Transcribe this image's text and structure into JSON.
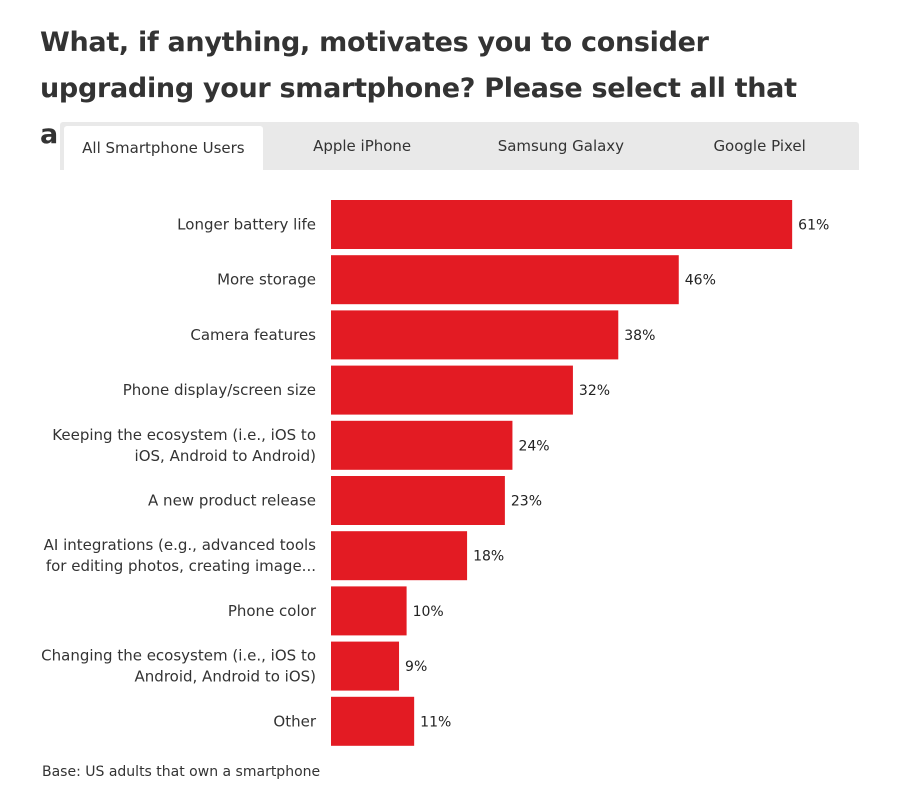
{
  "title": "What, if anything, motivates you to consider upgrading your smartphone? Please select all that apply.",
  "tabs": [
    {
      "label": "All Smartphone Users",
      "active": true
    },
    {
      "label": "Apple iPhone",
      "active": false
    },
    {
      "label": "Samsung Galaxy",
      "active": false
    },
    {
      "label": "Google Pixel",
      "active": false
    }
  ],
  "colors": {
    "bar": "#e31b23",
    "tab_bar_bg": "#e9e9e9"
  },
  "chart_data": {
    "type": "bar",
    "orientation": "horizontal",
    "categories": [
      [
        "Longer battery life"
      ],
      [
        "More storage"
      ],
      [
        "Camera features"
      ],
      [
        "Phone display/screen size"
      ],
      [
        "Keeping the ecosystem (i.e., iOS to",
        "iOS, Android to Android)"
      ],
      [
        "A new product release"
      ],
      [
        "AI integrations (e.g., advanced tools",
        "for editing photos, creating image..."
      ],
      [
        "Phone color"
      ],
      [
        "Changing the ecosystem (i.e., iOS to",
        "Android, Android to iOS)"
      ],
      [
        "Other"
      ]
    ],
    "values": [
      61,
      46,
      38,
      32,
      24,
      23,
      18,
      10,
      9,
      11
    ],
    "value_labels": [
      "61%",
      "46%",
      "38%",
      "32%",
      "24%",
      "23%",
      "18%",
      "10%",
      "9%",
      "11%"
    ],
    "unit": "%",
    "grid": false,
    "legend": "none"
  },
  "footnote": "Base: US adults that own a smartphone"
}
